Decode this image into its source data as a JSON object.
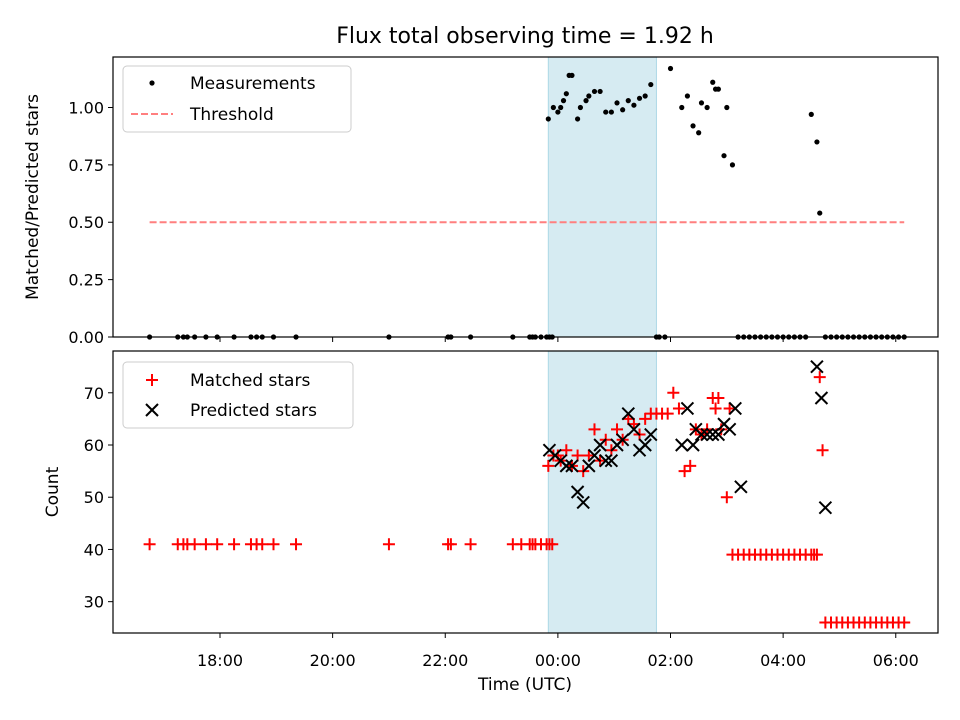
{
  "chart_data": [
    {
      "type": "scatter",
      "title": "Flux total observing time = 1.92 h",
      "xlabel": "",
      "ylabel": "Matched/Predicted stars",
      "xlim_hours": [
        -7.9,
        6.75
      ],
      "ylim": [
        0,
        1.22
      ],
      "yticks": [
        0.0,
        0.25,
        0.5,
        0.75,
        1.0
      ],
      "ytick_labels": [
        "0.00",
        "0.25",
        "0.50",
        "0.75",
        "1.00"
      ],
      "shaded_span_hours": [
        -0.17,
        1.75
      ],
      "legend_position": "top-left",
      "series": [
        {
          "name": "Measurements",
          "marker": "dot",
          "color": "#000000",
          "x": [
            -7.25,
            -6.75,
            -6.65,
            -6.58,
            -6.45,
            -6.25,
            -6.05,
            -5.75,
            -5.45,
            -5.35,
            -5.25,
            -5.05,
            -4.65,
            -3.0,
            -1.95,
            -1.9,
            -1.55,
            -0.8,
            -0.5,
            -0.45,
            -0.4,
            -0.3,
            -0.2,
            -0.15,
            -0.1,
            -0.17,
            -0.08,
            0.0,
            0.05,
            0.1,
            0.15,
            0.2,
            0.25,
            0.35,
            0.4,
            0.5,
            0.55,
            0.65,
            0.75,
            0.85,
            0.95,
            1.05,
            1.15,
            1.25,
            1.35,
            1.45,
            1.55,
            1.65,
            1.75,
            1.8,
            1.9,
            2.0,
            2.2,
            2.3,
            2.4,
            2.5,
            2.55,
            2.65,
            2.75,
            2.8,
            2.85,
            2.95,
            3.0,
            3.1,
            3.2,
            3.3,
            3.4,
            3.5,
            3.6,
            3.7,
            3.8,
            3.9,
            4.0,
            4.1,
            4.2,
            4.3,
            4.4,
            4.5,
            4.6,
            4.65,
            4.75,
            4.85,
            4.95,
            5.05,
            5.15,
            5.25,
            5.35,
            5.45,
            5.55,
            5.65,
            5.75,
            5.85,
            5.95,
            6.05,
            6.15
          ],
          "y": [
            0,
            0,
            0,
            0,
            0,
            0,
            0,
            0,
            0,
            0,
            0,
            0,
            0,
            0,
            0,
            0,
            0,
            0,
            0,
            0,
            0,
            0,
            0,
            0,
            0,
            0.95,
            1.0,
            0.98,
            1.0,
            1.03,
            1.06,
            1.14,
            1.14,
            0.95,
            1.0,
            1.03,
            1.05,
            1.07,
            1.07,
            0.98,
            0.98,
            1.02,
            0.99,
            1.03,
            1.01,
            1.04,
            1.05,
            1.1,
            0,
            0,
            0,
            1.17,
            1.0,
            1.05,
            0.92,
            0.89,
            1.02,
            1.0,
            1.11,
            1.08,
            1.08,
            0.79,
            1.0,
            0.75,
            0,
            0,
            0,
            0,
            0,
            0,
            0,
            0,
            0,
            0,
            0,
            0,
            0,
            0.97,
            0.85,
            0.54,
            0,
            0,
            0,
            0,
            0,
            0,
            0,
            0,
            0,
            0,
            0,
            0,
            0,
            0,
            0
          ]
        },
        {
          "name": "Threshold",
          "style": "dashed",
          "color": "#ff7f7f",
          "x": [
            -7.25,
            6.15
          ],
          "y": [
            0.5,
            0.5
          ]
        }
      ]
    },
    {
      "type": "scatter",
      "title": "",
      "xlabel": "Time (UTC)",
      "ylabel": "Count",
      "xlim_hours": [
        -7.9,
        6.75
      ],
      "ylim": [
        24,
        78
      ],
      "yticks": [
        30,
        40,
        50,
        60,
        70
      ],
      "ytick_labels": [
        "30",
        "40",
        "50",
        "60",
        "70"
      ],
      "xticks_hours": [
        -6,
        -4,
        -2,
        0,
        2,
        4,
        6
      ],
      "xtick_labels": [
        "18:00",
        "20:00",
        "22:00",
        "00:00",
        "02:00",
        "04:00",
        "06:00"
      ],
      "shaded_span_hours": [
        -0.17,
        1.75
      ],
      "legend_position": "top-left",
      "series": [
        {
          "name": "Matched stars",
          "marker": "plus",
          "color": "#ff0000",
          "x": [
            -7.25,
            -6.75,
            -6.65,
            -6.58,
            -6.45,
            -6.25,
            -6.05,
            -5.75,
            -5.45,
            -5.35,
            -5.25,
            -5.05,
            -4.65,
            -3.0,
            -1.95,
            -1.9,
            -1.55,
            -0.8,
            -0.65,
            -0.5,
            -0.45,
            -0.4,
            -0.3,
            -0.2,
            -0.15,
            -0.1,
            -0.17,
            -0.08,
            0.0,
            0.05,
            0.15,
            0.25,
            0.35,
            0.45,
            0.55,
            0.65,
            0.75,
            0.85,
            0.95,
            1.05,
            1.15,
            1.25,
            1.35,
            1.45,
            1.55,
            1.65,
            1.75,
            1.85,
            1.95,
            2.05,
            2.15,
            2.25,
            2.35,
            2.45,
            2.55,
            2.65,
            2.75,
            2.8,
            2.85,
            2.9,
            3.0,
            3.05,
            3.1,
            3.2,
            3.3,
            3.4,
            3.5,
            3.6,
            3.7,
            3.8,
            3.9,
            4.0,
            4.1,
            4.2,
            4.3,
            4.4,
            4.5,
            4.55,
            4.6,
            4.65,
            4.7,
            4.75,
            4.85,
            4.95,
            5.05,
            5.15,
            5.25,
            5.35,
            5.45,
            5.55,
            5.65,
            5.75,
            5.85,
            5.95,
            6.05,
            6.15
          ],
          "y": [
            41,
            41,
            41,
            41,
            41,
            41,
            41,
            41,
            41,
            41,
            41,
            41,
            41,
            41,
            41,
            41,
            41,
            41,
            41,
            41,
            41,
            41,
            41,
            41,
            41,
            41,
            56,
            58,
            58,
            57,
            59,
            56,
            58,
            55,
            58,
            63,
            57,
            61,
            59,
            63,
            61,
            65,
            64,
            62,
            65,
            66,
            66,
            66,
            66,
            70,
            67,
            55,
            56,
            63,
            62,
            63,
            69,
            67,
            69,
            63,
            50,
            67,
            39,
            39,
            39,
            39,
            39,
            39,
            39,
            39,
            39,
            39,
            39,
            39,
            39,
            39,
            39,
            39,
            39,
            73,
            59,
            26,
            26,
            26,
            26,
            26,
            26,
            26,
            26,
            26,
            26,
            26,
            26,
            26,
            26,
            26
          ]
        },
        {
          "name": "Predicted stars",
          "marker": "x",
          "color": "#000000",
          "x": [
            -0.15,
            -0.05,
            0.05,
            0.15,
            0.25,
            0.35,
            0.45,
            0.55,
            0.65,
            0.75,
            0.85,
            0.95,
            1.05,
            1.15,
            1.25,
            1.35,
            1.45,
            1.55,
            1.65,
            2.2,
            2.3,
            2.4,
            2.45,
            2.55,
            2.65,
            2.75,
            2.85,
            2.95,
            3.05,
            3.15,
            3.25,
            4.6,
            4.68,
            4.75
          ],
          "y": [
            59,
            58,
            57,
            56,
            56,
            51,
            49,
            56,
            58,
            60,
            57,
            57,
            60,
            61,
            66,
            63,
            59,
            60,
            62,
            60,
            67,
            60,
            63,
            62,
            62,
            62,
            62,
            64,
            63,
            67,
            52,
            75,
            69,
            48
          ]
        }
      ]
    }
  ]
}
